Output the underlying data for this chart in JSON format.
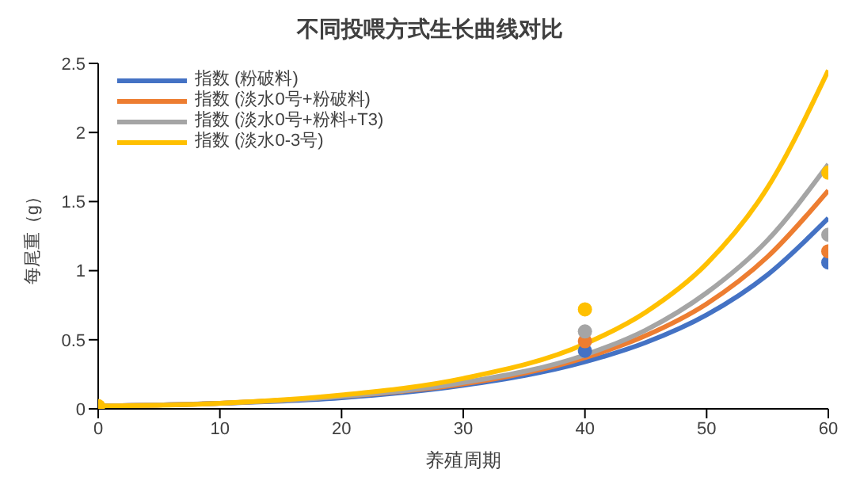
{
  "chart_data": {
    "type": "line",
    "title": "不同投喂方式生长曲线对比",
    "xlabel": "养殖周期",
    "ylabel": "每尾重（g）",
    "xlim": [
      0,
      60
    ],
    "xticks": [
      0,
      10,
      20,
      30,
      40,
      50,
      60
    ],
    "ylim": [
      0,
      2.5
    ],
    "yticks": [
      0,
      0.5,
      1,
      1.5,
      2,
      2.5
    ],
    "grid": false,
    "legend": "top left",
    "marker": "none",
    "series": [
      {
        "type": "scatter",
        "marker": "circle",
        "color": "#4472c4",
        "x": [
          40,
          60
        ],
        "values": [
          0.42,
          1.06
        ]
      },
      {
        "type": "scatter",
        "marker": "circle",
        "color": "#ed7d31",
        "x": [
          40,
          60
        ],
        "values": [
          0.49,
          1.14
        ]
      },
      {
        "type": "scatter",
        "marker": "circle",
        "color": "#a5a5a5",
        "x": [
          40,
          60
        ],
        "values": [
          0.56,
          1.26
        ]
      },
      {
        "type": "scatter",
        "marker": "circle",
        "color": "#ffc000",
        "x": [
          0,
          40,
          60
        ],
        "values": [
          0.02,
          0.72,
          1.71
        ]
      },
      {
        "name": "指数 (粉破料)",
        "color": "#4472c4",
        "x": [
          0,
          10,
          20,
          30,
          40,
          45,
          50,
          55,
          60
        ],
        "values": [
          0.02,
          0.04,
          0.08,
          0.17,
          0.34,
          0.48,
          0.68,
          0.97,
          1.38
        ]
      },
      {
        "name": "指数 (淡水0号+粉破料)",
        "color": "#ed7d31",
        "x": [
          0,
          10,
          20,
          30,
          40,
          45,
          50,
          55,
          60
        ],
        "values": [
          0.02,
          0.04,
          0.09,
          0.18,
          0.37,
          0.53,
          0.76,
          1.1,
          1.58
        ]
      },
      {
        "name": "指数 (淡水0号+粉料+T3)",
        "color": "#a5a5a5",
        "x": [
          0,
          10,
          20,
          30,
          40,
          45,
          50,
          55,
          60
        ],
        "values": [
          0.02,
          0.04,
          0.09,
          0.19,
          0.39,
          0.57,
          0.84,
          1.22,
          1.77
        ]
      },
      {
        "name": "指数 (淡水0-3号)",
        "color": "#ffc000",
        "x": [
          0,
          10,
          20,
          30,
          40,
          45,
          50,
          55,
          60
        ],
        "values": [
          0.02,
          0.04,
          0.1,
          0.22,
          0.47,
          0.7,
          1.05,
          1.6,
          2.45
        ]
      }
    ]
  }
}
